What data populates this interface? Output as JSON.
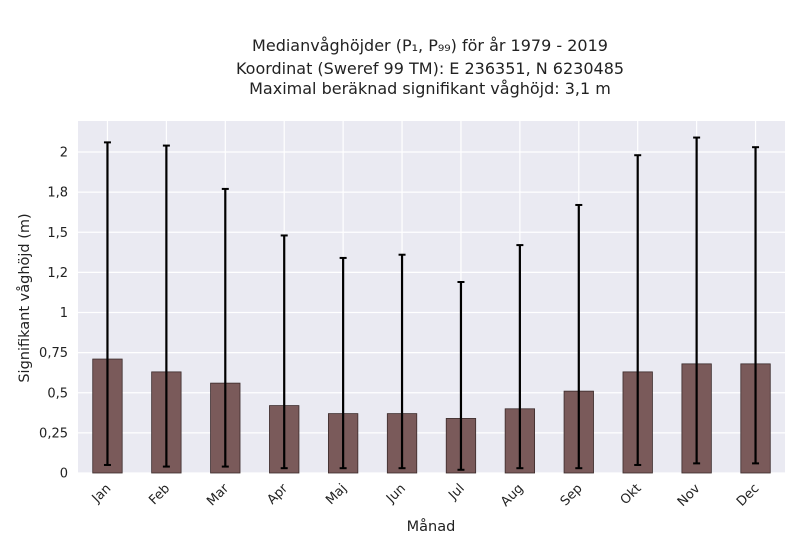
{
  "chart_data": {
    "type": "bar",
    "title_lines": [
      "Medianvåghöjder (P₁, P₉₉) för år 1979 - 2019",
      "Koordinat (Sweref 99 TM): E 236351, N 6230485",
      "Maximal beräknad signifikant våghöjd: 3,1 m"
    ],
    "xlabel": "Månad",
    "ylabel": "Signifikant våghöjd (m)",
    "ylim": [
      0,
      2.0
    ],
    "y_scale": "nonlinear (tick-label spaced)",
    "yticks": [
      {
        "value": 0,
        "label": "0"
      },
      {
        "value": 0.25,
        "label": "0,25"
      },
      {
        "value": 0.5,
        "label": "0,5"
      },
      {
        "value": 0.75,
        "label": "0,75"
      },
      {
        "value": 1.0,
        "label": "1"
      },
      {
        "value": 1.25,
        "label": "1,2"
      },
      {
        "value": 1.5,
        "label": "1,5"
      },
      {
        "value": 1.75,
        "label": "1,8"
      },
      {
        "value": 2.0,
        "label": "2"
      }
    ],
    "grid": true,
    "categories": [
      "Jan",
      "Feb",
      "Mar",
      "Apr",
      "Maj",
      "Jun",
      "Jul",
      "Aug",
      "Sep",
      "Okt",
      "Nov",
      "Dec"
    ],
    "series": [
      {
        "values": [
          0.71,
          0.63,
          0.56,
          0.42,
          0.37,
          0.37,
          0.34,
          0.4,
          0.51,
          0.63,
          0.68,
          0.68
        ],
        "lower": [
          0.05,
          0.04,
          0.04,
          0.03,
          0.03,
          0.03,
          0.02,
          0.03,
          0.03,
          0.05,
          0.06,
          0.06
        ],
        "upper": [
          2.06,
          2.04,
          1.77,
          1.48,
          1.34,
          1.36,
          1.19,
          1.42,
          1.67,
          1.98,
          2.09,
          2.03
        ]
      }
    ],
    "colors": {
      "bar": "#7a5a5a",
      "bar_edge": "#3a2a2a",
      "errorbar": "#000000",
      "plot_bg": "#eaeaf2",
      "grid": "#ffffff"
    }
  }
}
